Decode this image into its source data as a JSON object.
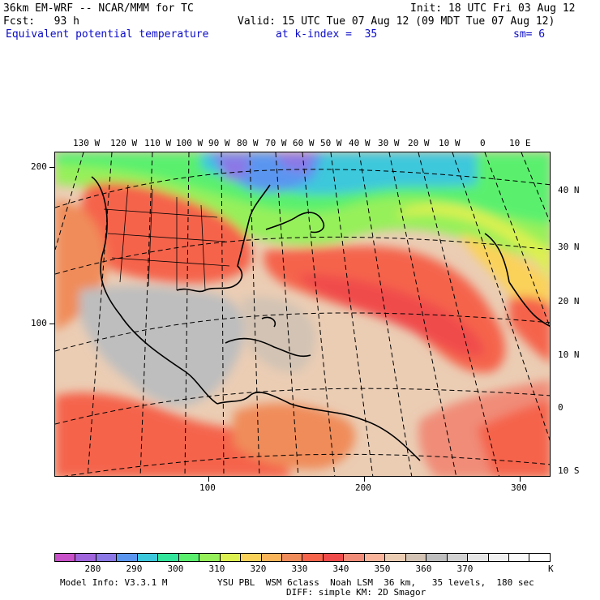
{
  "header": {
    "line1_left": "36km EM-WRF -- NCAR/MMM for TC",
    "line1_right": "Init: 18 UTC Fri 03 Aug 12",
    "line2_left": "Fcst:   93 h",
    "line2_right": "Valid: 15 UTC Tue 07 Aug 12 (09 MDT Tue 07 Aug 12)",
    "field": "Equivalent potential temperature",
    "level": "at k-index =  35",
    "smooth": "sm= 6"
  },
  "map": {
    "lon_labels": [
      "130 W",
      "120 W",
      "110 W",
      "100 W",
      "90 W",
      "80 W",
      "70 W",
      "60 W",
      "50 W",
      "40 W",
      "30 W",
      "20 W",
      "10 W",
      "0",
      "10 E"
    ],
    "lat_labels": [
      "40 N",
      "30 N",
      "20 N",
      "10 N",
      "0",
      "10 S"
    ],
    "grid_x_ticks": [
      "100",
      "200",
      "300"
    ],
    "grid_y_ticks": [
      "200",
      "100"
    ]
  },
  "colorbar": {
    "unit": "K",
    "labels": [
      "280",
      "290",
      "300",
      "310",
      "320",
      "330",
      "340",
      "350",
      "360",
      "370"
    ],
    "colors": [
      "#c850c8",
      "#a064dc",
      "#8c78e6",
      "#5a96f0",
      "#3cc8dc",
      "#32e69b",
      "#5af06e",
      "#96f05a",
      "#dcf050",
      "#fad25a",
      "#fab45a",
      "#f08c5a",
      "#f5644b",
      "#f04b4b",
      "#f08c78",
      "#fab49b",
      "#ebcdb4",
      "#d2c3b4",
      "#bebebe",
      "#d2d2d2",
      "#e6e6e6",
      "#f0f0f0",
      "#fafafa",
      "#ffffff"
    ]
  },
  "footer": {
    "model": "Model Info: V3.3.1 M",
    "physics": "YSU PBL  WSM 6class  Noah LSM  36 km,   35 levels,  180 sec",
    "diff": "DIFF: simple KM: 2D Smagor"
  }
}
